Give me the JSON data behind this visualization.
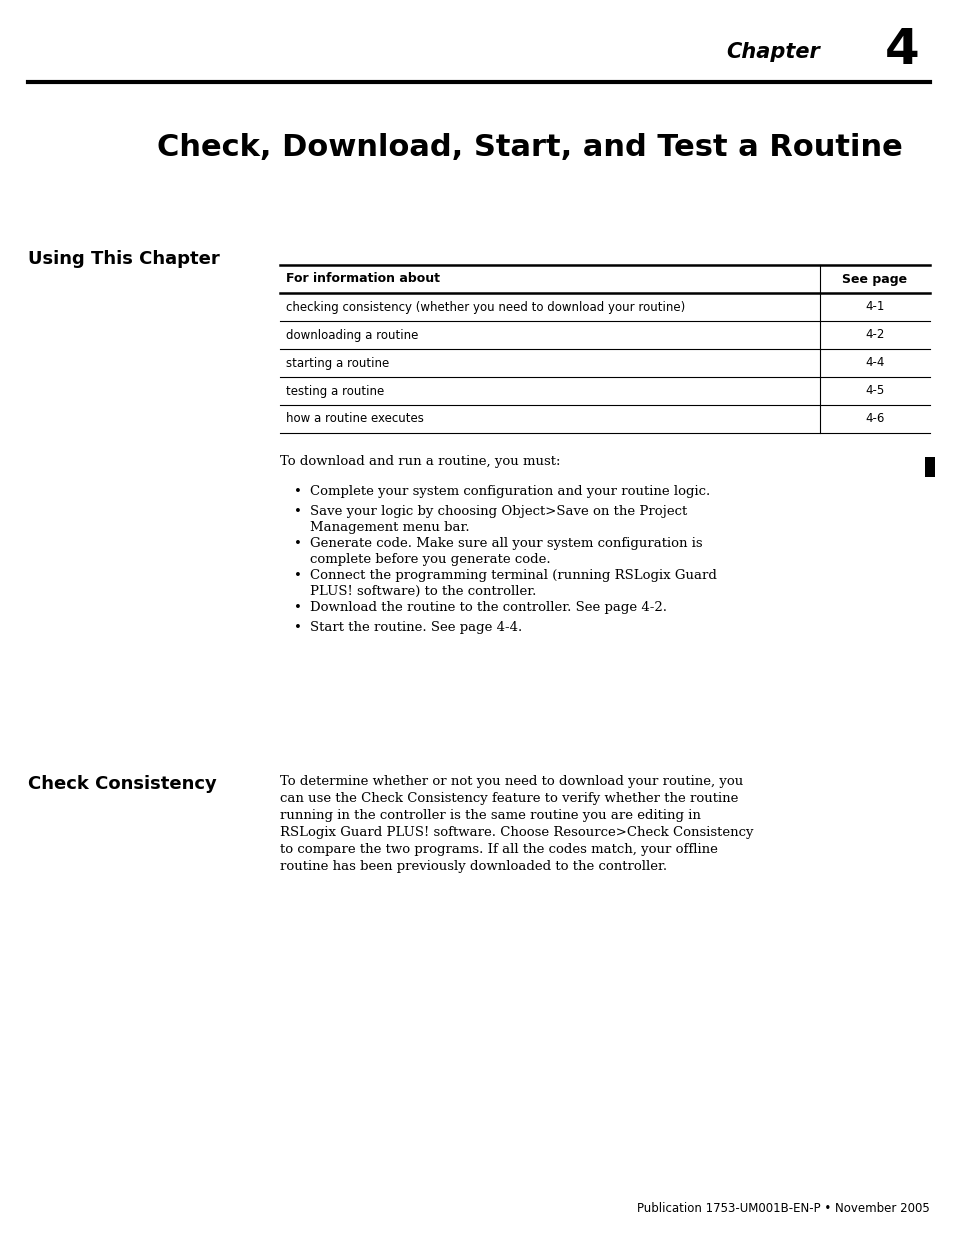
{
  "page_width": 9.54,
  "page_height": 12.35,
  "bg_color": "#ffffff",
  "chapter_label": "Chapter",
  "chapter_number": "4",
  "main_title": "Check, Download, Start, and Test a Routine",
  "left_heading1": "Using This Chapter",
  "left_heading2": "Check Consistency",
  "table_header_col1": "For information about",
  "table_header_col2": "See page",
  "table_rows": [
    [
      "checking consistency (whether you need to download your routine)",
      "4-1"
    ],
    [
      "downloading a routine",
      "4-2"
    ],
    [
      "starting a routine",
      "4-4"
    ],
    [
      "testing a routine",
      "4-5"
    ],
    [
      "how a routine executes",
      "4-6"
    ]
  ],
  "intro_text": "To download and run a routine, you must:",
  "bullet_points": [
    [
      "Complete your system configuration and your routine logic.",
      1
    ],
    [
      "Save your logic by choosing Object>Save on the Project\nManagement menu bar.",
      2
    ],
    [
      "Generate code. Make sure all your system configuration is\ncomplete before you generate code.",
      2
    ],
    [
      "Connect the programming terminal (running RSLogix Guard\nPLUS! software) to the controller.",
      2
    ],
    [
      "Download the routine to the controller. See page 4-2.",
      1
    ],
    [
      "Start the routine. See page 4-4.",
      1
    ]
  ],
  "check_consistency_text": "To determine whether or not you need to download your routine, you\ncan use the Check Consistency feature to verify whether the routine\nrunning in the controller is the same routine you are editing in\nRSLogix Guard PLUS! software. Choose Resource>Check Consistency\nto compare the two programs. If all the codes match, your offline\nroutine has been previously downloaded to the controller.",
  "footer_text": "Publication 1753-UM001B-EN-P • November 2005"
}
